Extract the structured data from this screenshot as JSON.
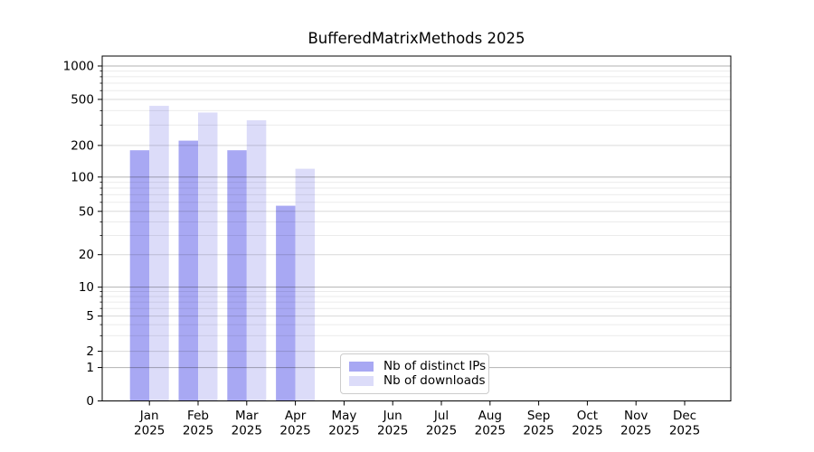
{
  "chart_data": {
    "type": "bar",
    "title": "BufferedMatrixMethods 2025",
    "categories": [
      "Jan",
      "Feb",
      "Mar",
      "Apr",
      "May",
      "Jun",
      "Jul",
      "Aug",
      "Sep",
      "Oct",
      "Nov",
      "Dec"
    ],
    "xtick_year": "2025",
    "series": [
      {
        "name": "Nb of distinct IPs",
        "color": "#a8a8f3",
        "values": [
          180,
          220,
          180,
          56,
          0,
          0,
          0,
          0,
          0,
          0,
          0,
          0
        ]
      },
      {
        "name": "Nb of downloads",
        "color": "#dcdcf9",
        "values": [
          440,
          385,
          330,
          120,
          0,
          0,
          0,
          0,
          0,
          0,
          0,
          0
        ]
      }
    ],
    "xlabel": "",
    "ylabel": "",
    "yscale": "symlog",
    "yticks": [
      0,
      1,
      2,
      5,
      10,
      20,
      50,
      100,
      200,
      500,
      1000
    ],
    "ylim": [
      0,
      1200
    ],
    "grid": "both",
    "legend_position": "lower center"
  },
  "colors": {
    "background": "#ffffff",
    "axis_spine": "#000000",
    "tick_label": "#000000",
    "grid_decade": "rgba(0,0,0,0.30)",
    "grid_labeled": "rgba(0,0,0,0.15)",
    "grid_minor": "rgba(0,0,0,0.08)",
    "legend_border": "#cccccc"
  }
}
